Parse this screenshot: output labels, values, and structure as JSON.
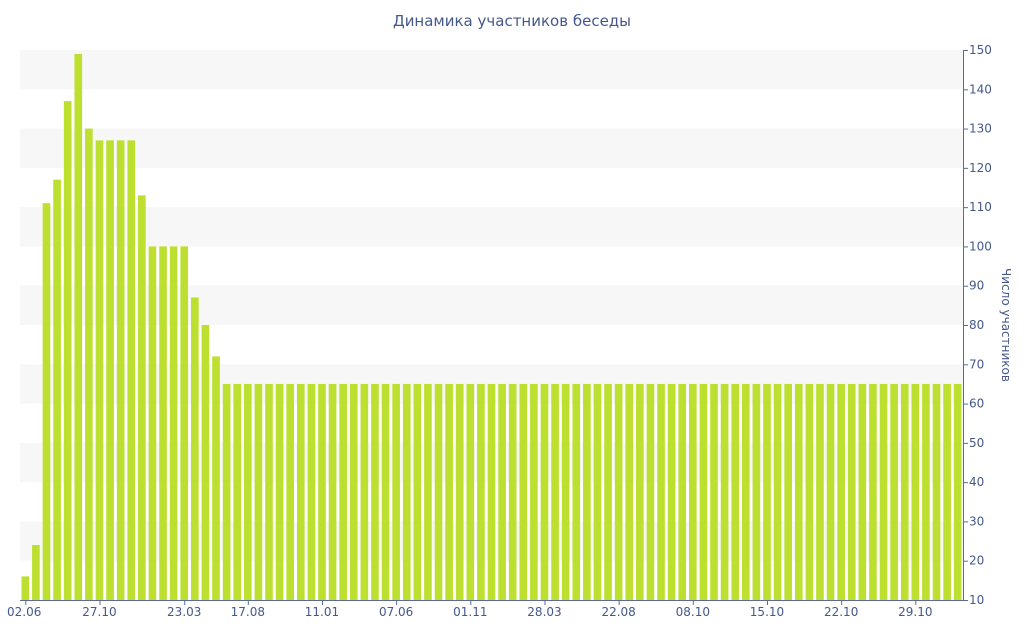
{
  "chart_data": {
    "type": "bar",
    "title": "Динамика участников беседы",
    "xlabel": "",
    "ylabel": "Число участников",
    "ylim": [
      10,
      150
    ],
    "y_ticks": [
      10,
      20,
      30,
      40,
      50,
      60,
      70,
      80,
      90,
      100,
      110,
      120,
      130,
      140,
      150
    ],
    "y_axis_position": "right",
    "grid": "alternating horizontal bands",
    "legend": "none",
    "bar_color": "#bddf2f",
    "x_tick_labels": [
      "02.06",
      "27.10",
      "23.03",
      "17.08",
      "11.01",
      "07.06",
      "01.11",
      "28.03",
      "22.08",
      "08.10",
      "15.10",
      "22.10",
      "29.10"
    ],
    "x_tick_bar_index": [
      0,
      7,
      15,
      21,
      28,
      35,
      42,
      49,
      56,
      63,
      70,
      77,
      84
    ],
    "values": [
      16,
      24,
      111,
      117,
      137,
      149,
      130,
      127,
      127,
      127,
      127,
      113,
      100,
      100,
      100,
      100,
      87,
      80,
      72,
      65,
      65,
      65,
      65,
      65,
      65,
      65,
      65,
      65,
      65,
      65,
      65,
      65,
      65,
      65,
      65,
      65,
      65,
      65,
      65,
      65,
      65,
      65,
      65,
      65,
      65,
      65,
      65,
      65,
      65,
      65,
      65,
      65,
      65,
      65,
      65,
      65,
      65,
      65,
      65,
      65,
      65,
      65,
      65,
      65,
      65,
      65,
      65,
      65,
      65,
      65,
      65,
      65,
      65,
      65,
      65,
      65,
      65,
      65,
      65,
      65,
      65,
      65,
      65,
      65,
      65,
      65,
      65,
      65,
      65
    ]
  }
}
